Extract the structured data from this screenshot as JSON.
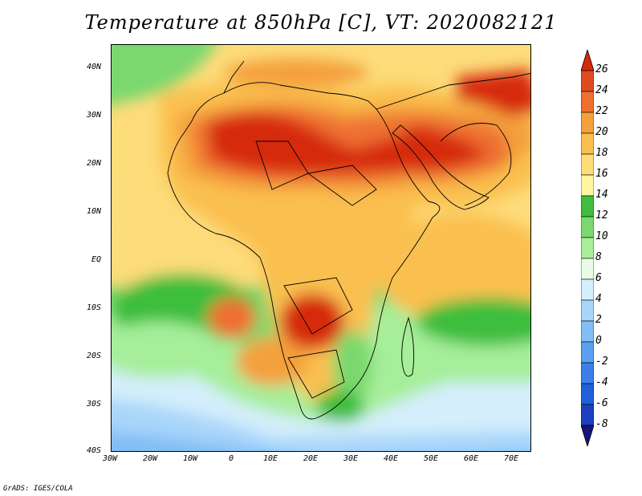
{
  "title": "Temperature at 850hPa [C], VT: 2020082121",
  "credit": "GrADS: IGES/COLA",
  "lat_ticks": [
    "40N",
    "30N",
    "20N",
    "10N",
    "EQ",
    "10S",
    "20S",
    "30S",
    "40S"
  ],
  "lon_ticks": [
    "30W",
    "20W",
    "10W",
    "0",
    "10E",
    "20E",
    "30E",
    "40E",
    "50E",
    "60E",
    "70E"
  ],
  "colorbar": {
    "levels": [
      "-8",
      "-6",
      "-4",
      "-2",
      "0",
      "2",
      "4",
      "6",
      "8",
      "10",
      "12",
      "14",
      "16",
      "18",
      "20",
      "22",
      "24",
      "26"
    ],
    "colors": [
      "#15157a",
      "#1f3fbf",
      "#2060d8",
      "#3a80e8",
      "#5aa0f0",
      "#82bdf5",
      "#a8d6fa",
      "#d4eefb",
      "#eafbe8",
      "#a6ee9a",
      "#7ad86e",
      "#3ebe3e",
      "#fff4a0",
      "#fddc7a",
      "#fac050",
      "#f4a03c",
      "#ee7030",
      "#e04a20",
      "#d62a0c"
    ]
  }
}
